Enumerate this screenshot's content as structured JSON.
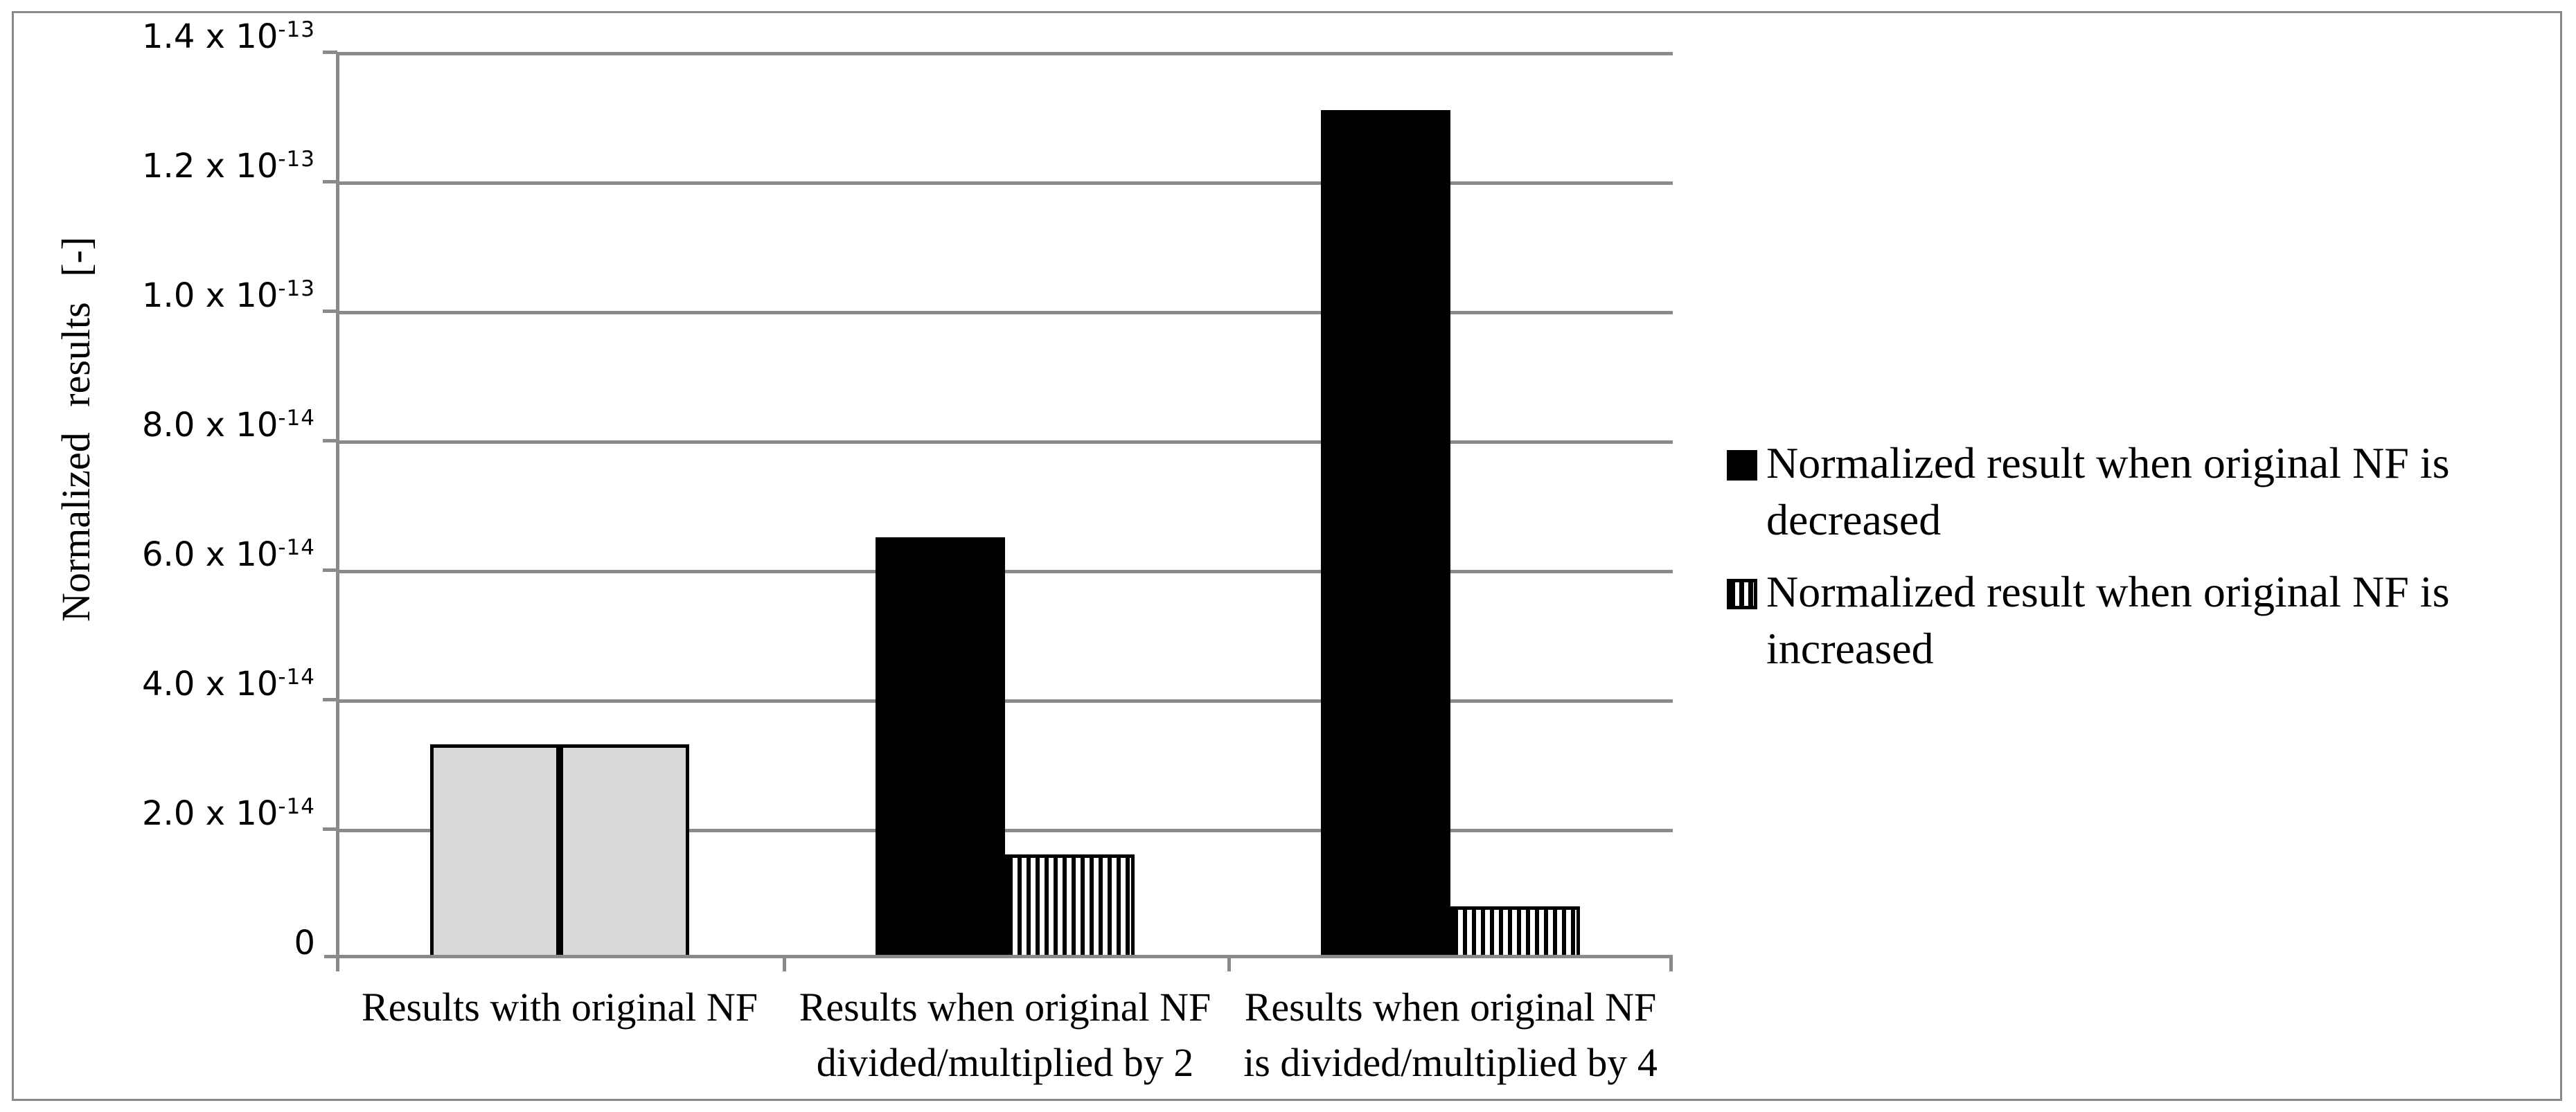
{
  "chart_data": {
    "type": "bar",
    "title": "",
    "categories": [
      "Results with original NF",
      "Results when original NF divided/multiplied by 2",
      "Results when original NF is divided/multiplied by 4"
    ],
    "series": [
      {
        "name": "Normalized result when original NF is decreased",
        "values": [
          3.3e-14,
          6.5e-14,
          1.31e-13
        ]
      },
      {
        "name": "Normalized result when original NF is increased",
        "values": [
          3.3e-14,
          1.6e-14,
          8e-15
        ]
      }
    ],
    "xlabel": "",
    "ylabel": "Normalized results [-]",
    "ylim": [
      0,
      1.4e-13
    ],
    "ytick_step": 2e-14,
    "grid": "horizontal-major",
    "legend_position": "right",
    "note": "Both bars of first category are plain light gray; series 1 is solid black, series 2 is vertical black stripes on white"
  },
  "yaxis": {
    "title": "Normalized results [-]",
    "ticks": [
      {
        "main": "1.4 x 10",
        "sup": "-13"
      },
      {
        "main": "1.2 x 10",
        "sup": "-13"
      },
      {
        "main": "1.0 x 10",
        "sup": "-13"
      },
      {
        "main": "8.0 x 10",
        "sup": "-14"
      },
      {
        "main": "6.0 x 10",
        "sup": "-14"
      },
      {
        "main": "4.0 x 10",
        "sup": "-14"
      },
      {
        "main": "2.0 x 10",
        "sup": "-14"
      },
      {
        "main": "0",
        "sup": ""
      }
    ]
  },
  "xaxis": {
    "categories": [
      {
        "lines": [
          "Results with original NF",
          ""
        ]
      },
      {
        "lines": [
          "Results when original NF",
          "divided/multiplied by 2"
        ]
      },
      {
        "lines": [
          "Results when original NF",
          "is divided/multiplied by 4"
        ]
      }
    ]
  },
  "legend": {
    "entries": [
      {
        "swatch": "black-square",
        "lines": [
          "Normalized result when original NF is",
          "decreased"
        ]
      },
      {
        "swatch": "striped-square",
        "lines": [
          "Normalized result when original NF is",
          "increased"
        ]
      }
    ]
  },
  "colors": {
    "grid_and_axis": "#8a8a8a",
    "frame_border": "#8a8a8a",
    "bar_decreased": "#000000",
    "bar_original_gray": "#d9d9d9",
    "bar_increased_stripe_fg": "#000000",
    "bar_increased_stripe_bg": "#ffffff",
    "background": "#ffffff"
  }
}
